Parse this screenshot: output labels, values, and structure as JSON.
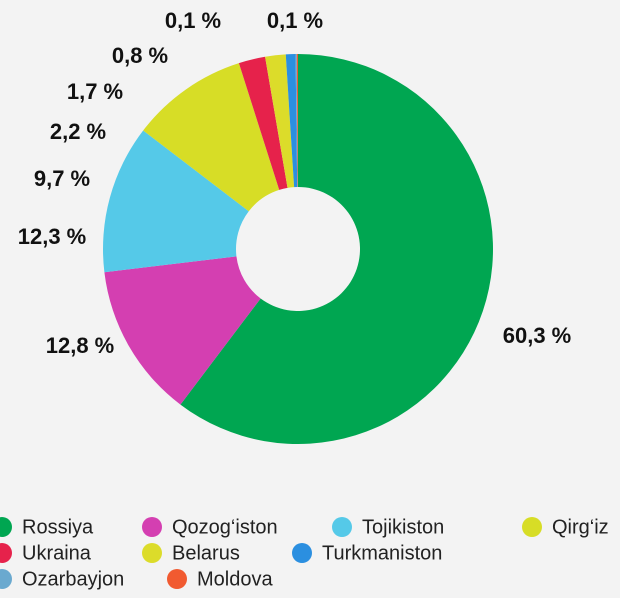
{
  "chart_data": {
    "type": "donut",
    "categories": [
      "Rossiya",
      "Qozog‘iston",
      "Tojikiston",
      "Qirg‘iz",
      "Ukraina",
      "Belarus",
      "Turkmaniston",
      "Ozarbayjon",
      "Moldova"
    ],
    "values": [
      60.3,
      12.8,
      12.3,
      9.7,
      2.2,
      1.7,
      0.8,
      0.1,
      0.1
    ],
    "value_labels": [
      "60,3 %",
      "12,8 %",
      "12,3 %",
      "9,7 %",
      "2,2 %",
      "1,7 %",
      "0,8 %",
      "0,1 %",
      "0,1 %"
    ],
    "colors": [
      "#00a651",
      "#d43fb1",
      "#55c9e8",
      "#d7dd26",
      "#e6224b",
      "#dcdc2a",
      "#2b8fe0",
      "#6aa9cf",
      "#f15a30"
    ]
  }
}
